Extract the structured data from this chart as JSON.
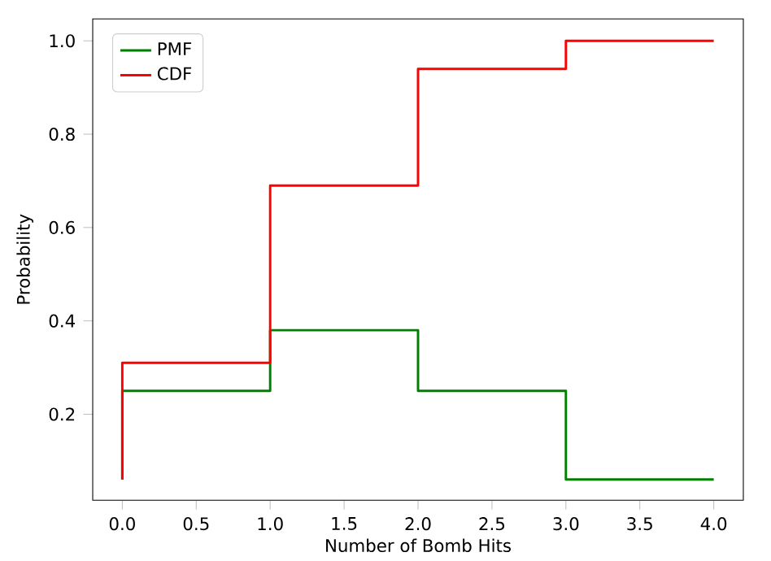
{
  "chart_data": {
    "type": "step",
    "xlabel": "Number of Bomb Hits",
    "ylabel": "Probability",
    "x": [
      0,
      1,
      2,
      3,
      4
    ],
    "series": [
      {
        "name": "PMF",
        "color": "#008000",
        "values": [
          0.06,
          0.25,
          0.38,
          0.25,
          0.06
        ]
      },
      {
        "name": "CDF",
        "color": "#ff0000",
        "values": [
          0.06,
          0.31,
          0.69,
          0.94,
          1.0
        ]
      }
    ],
    "xlim": [
      -0.2,
      4.2
    ],
    "ylim": [
      0.015625,
      1.046875
    ],
    "xticks": [
      {
        "value": 0,
        "label": "0.0"
      },
      {
        "value": 0.5,
        "label": "0.5"
      },
      {
        "value": 1,
        "label": "1.0"
      },
      {
        "value": 1.5,
        "label": "1.5"
      },
      {
        "value": 2,
        "label": "2.0"
      },
      {
        "value": 2.5,
        "label": "2.5"
      },
      {
        "value": 3,
        "label": "3.0"
      },
      {
        "value": 3.5,
        "label": "3.5"
      },
      {
        "value": 4,
        "label": "4.0"
      }
    ],
    "yticks": [
      0.2,
      0.4,
      0.6,
      0.8,
      {
        "value": 1.0,
        "label": "1.0"
      }
    ],
    "legend": "top left",
    "grid": false,
    "marker": "none",
    "line_style": "solid"
  }
}
